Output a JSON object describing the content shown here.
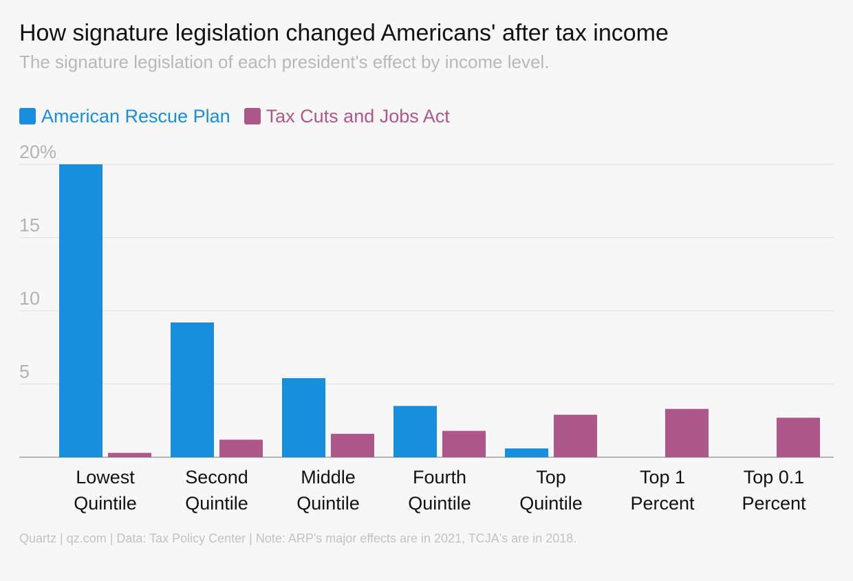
{
  "header": {
    "title": "How signature legislation changed Americans' after tax income",
    "subtitle": "The signature legislation of each president's effect by income level."
  },
  "legend": {
    "items": [
      {
        "label": "American Rescue Plan",
        "color": "#168edc"
      },
      {
        "label": "Tax Cuts and Jobs Act",
        "color": "#ad5889"
      }
    ]
  },
  "footer": {
    "text": "Quartz | qz.com | Data: Tax Policy Center | Note: ARP's major effects are in 2021, TCJA's are in 2018."
  },
  "chart_data": {
    "type": "bar",
    "title": "How signature legislation changed Americans' after tax income",
    "subtitle": "The signature legislation of each president's effect by income level.",
    "xlabel": "",
    "ylabel": "",
    "ylim": [
      0,
      20
    ],
    "y_ticks": [
      5,
      10,
      15,
      20
    ],
    "y_tick_labels": [
      "5",
      "10",
      "15",
      "20%"
    ],
    "grid": true,
    "legend_position": "top-left",
    "categories": [
      [
        "Lowest",
        "Quintile"
      ],
      [
        "Second",
        "Quintile"
      ],
      [
        "Middle",
        "Quintile"
      ],
      [
        "Fourth",
        "Quintile"
      ],
      [
        "Top",
        "Quintile"
      ],
      [
        "Top 1",
        "Percent"
      ],
      [
        "Top 0.1",
        "Percent"
      ]
    ],
    "series": [
      {
        "name": "American Rescue Plan",
        "color": "#168edc",
        "values": [
          20.0,
          9.2,
          5.4,
          3.5,
          0.6,
          0.0,
          0.0
        ]
      },
      {
        "name": "Tax Cuts and Jobs Act",
        "color": "#ad5889",
        "values": [
          0.3,
          1.2,
          1.6,
          1.8,
          2.9,
          3.3,
          2.7
        ]
      }
    ]
  }
}
